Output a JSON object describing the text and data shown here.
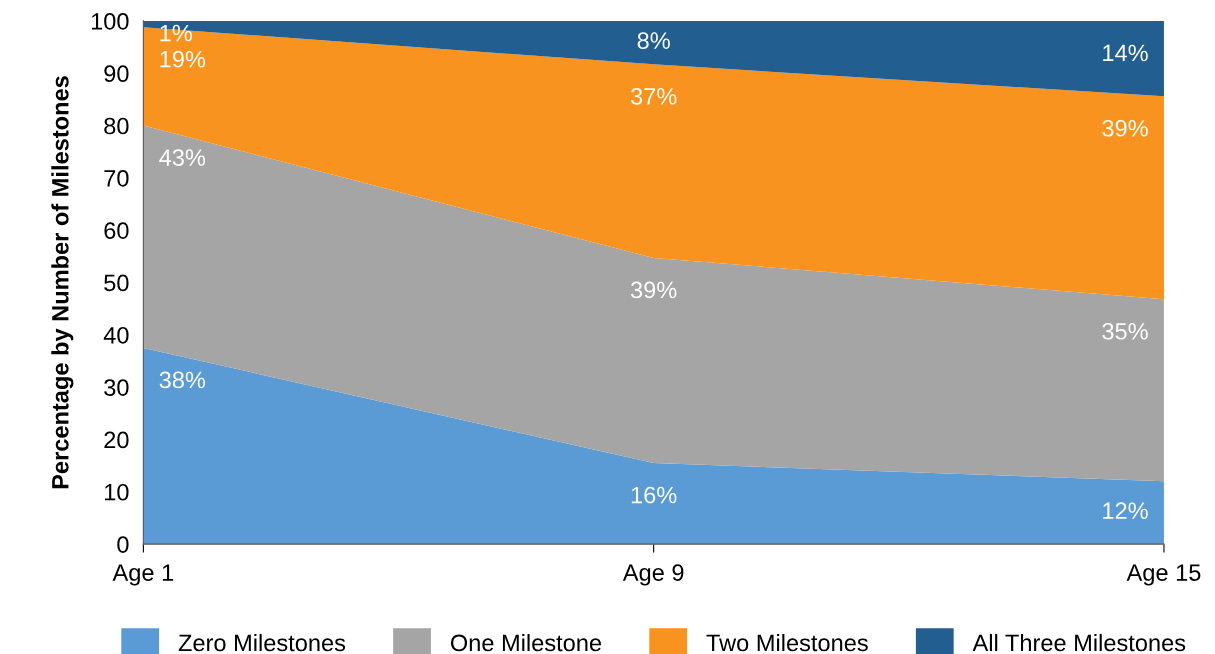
{
  "chart_data": {
    "type": "area",
    "stacked": true,
    "ylabel": "Percentage by Number of Milestones",
    "categories": [
      "Age 1",
      "Age 9",
      "Age 15"
    ],
    "series": [
      {
        "name": "Zero Milestones",
        "color": "#5b9bd5",
        "values": [
          37.5,
          15.5,
          12.0
        ],
        "value_labels": [
          "38%",
          "16%",
          "12%"
        ]
      },
      {
        "name": "One Milestone",
        "color": "#a5a5a5",
        "values": [
          42.5,
          39.2,
          34.8
        ],
        "value_labels": [
          "43%",
          "39%",
          "35%"
        ]
      },
      {
        "name": "Two Milestones",
        "color": "#f7931e",
        "values": [
          18.8,
          37.0,
          38.8
        ],
        "value_labels": [
          "19%",
          "37%",
          "39%"
        ]
      },
      {
        "name": "All Three Milestones",
        "color": "#235e91",
        "values": [
          1.2,
          8.3,
          14.4
        ],
        "value_labels": [
          "1%",
          "8%",
          "14%"
        ]
      }
    ],
    "ylim": [
      0,
      100
    ],
    "yticks": [
      0,
      10,
      20,
      30,
      40,
      50,
      60,
      70,
      80,
      90,
      100
    ],
    "grid": false,
    "legend": "bottom"
  }
}
